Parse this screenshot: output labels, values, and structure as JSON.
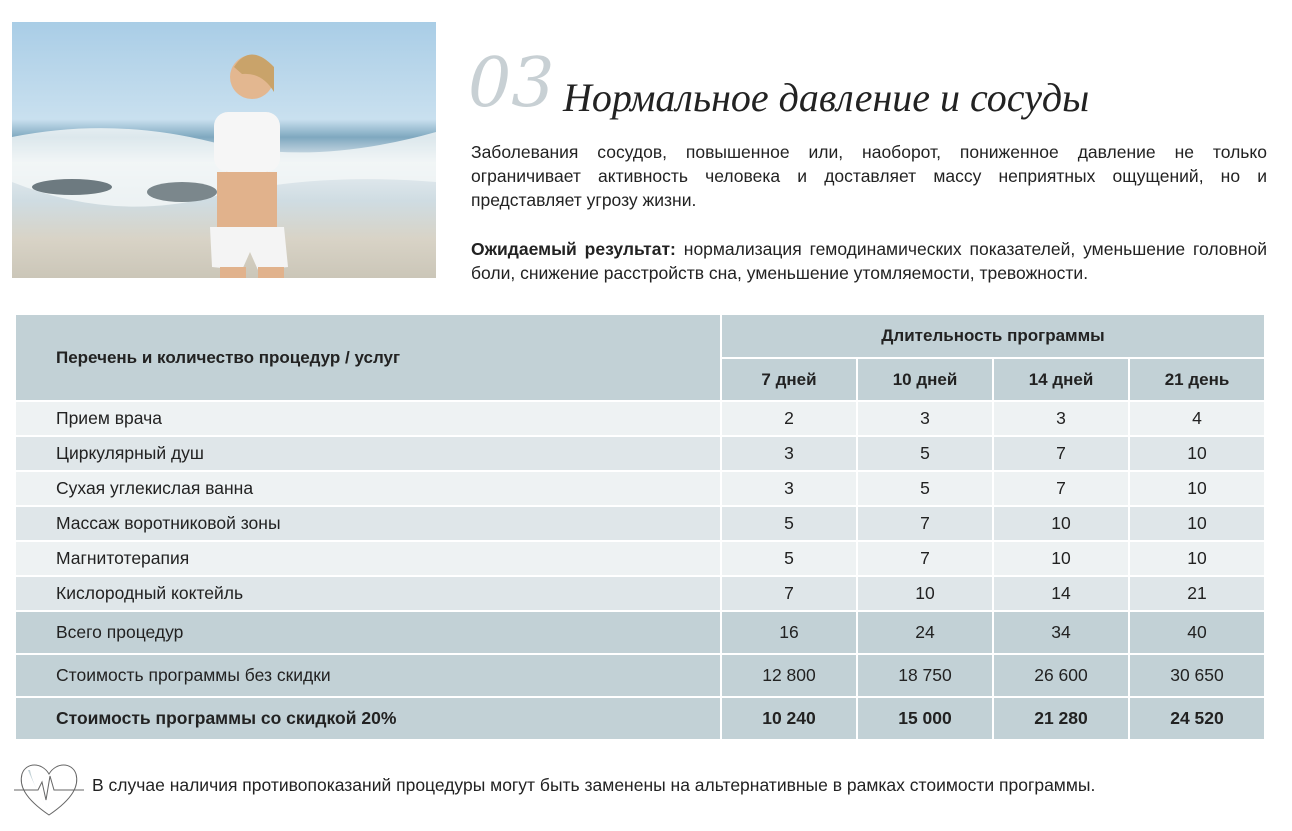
{
  "header": {
    "number": "03",
    "title": "Нормальное давление и сосуды"
  },
  "description": "Заболевания сосудов, повышенное или, наоборот, пониженное давление не только ограничивает активность человека и доставляет массу неприятных ощущений, но и представляет угрозу жизни.",
  "result": {
    "label": "Ожидаемый результат:",
    "text": " нормализация гемодинамических показателей, уменьшение головной боли, снижение расстройств сна, уменьшение утомляемости, тревожности."
  },
  "table": {
    "col_header": "Перечень и количество процедур / услуг",
    "duration_header": "Длительность программы",
    "durations": [
      "7 дней",
      "10 дней",
      "14 дней",
      "21 день"
    ],
    "rows": [
      {
        "name": "Прием врача",
        "values": [
          "2",
          "3",
          "3",
          "4"
        ]
      },
      {
        "name": "Циркулярный душ",
        "values": [
          "3",
          "5",
          "7",
          "10"
        ]
      },
      {
        "name": "Сухая углекислая ванна",
        "values": [
          "3",
          "5",
          "7",
          "10"
        ]
      },
      {
        "name": "Массаж воротниковой зоны",
        "values": [
          "5",
          "7",
          "10",
          "10"
        ]
      },
      {
        "name": "Магнитотерапия",
        "values": [
          "5",
          "7",
          "10",
          "10"
        ]
      },
      {
        "name": "Кислородный коктейль",
        "values": [
          "7",
          "10",
          "14",
          "21"
        ]
      }
    ],
    "totals": [
      {
        "name": "Всего процедур",
        "values": [
          "16",
          "24",
          "34",
          "40"
        ]
      },
      {
        "name": "Стоимость программы без скидки",
        "values": [
          "12 800",
          "18 750",
          "26 600",
          "30 650"
        ]
      },
      {
        "name": "Стоимость программы со скидкой 20%",
        "values": [
          "10 240",
          "15 000",
          "21 280",
          "24 520"
        ]
      }
    ]
  },
  "footnote": "В случае наличия противопоказаний процедуры могут быть заменены на альтернативные в рамках стоимости программы."
}
